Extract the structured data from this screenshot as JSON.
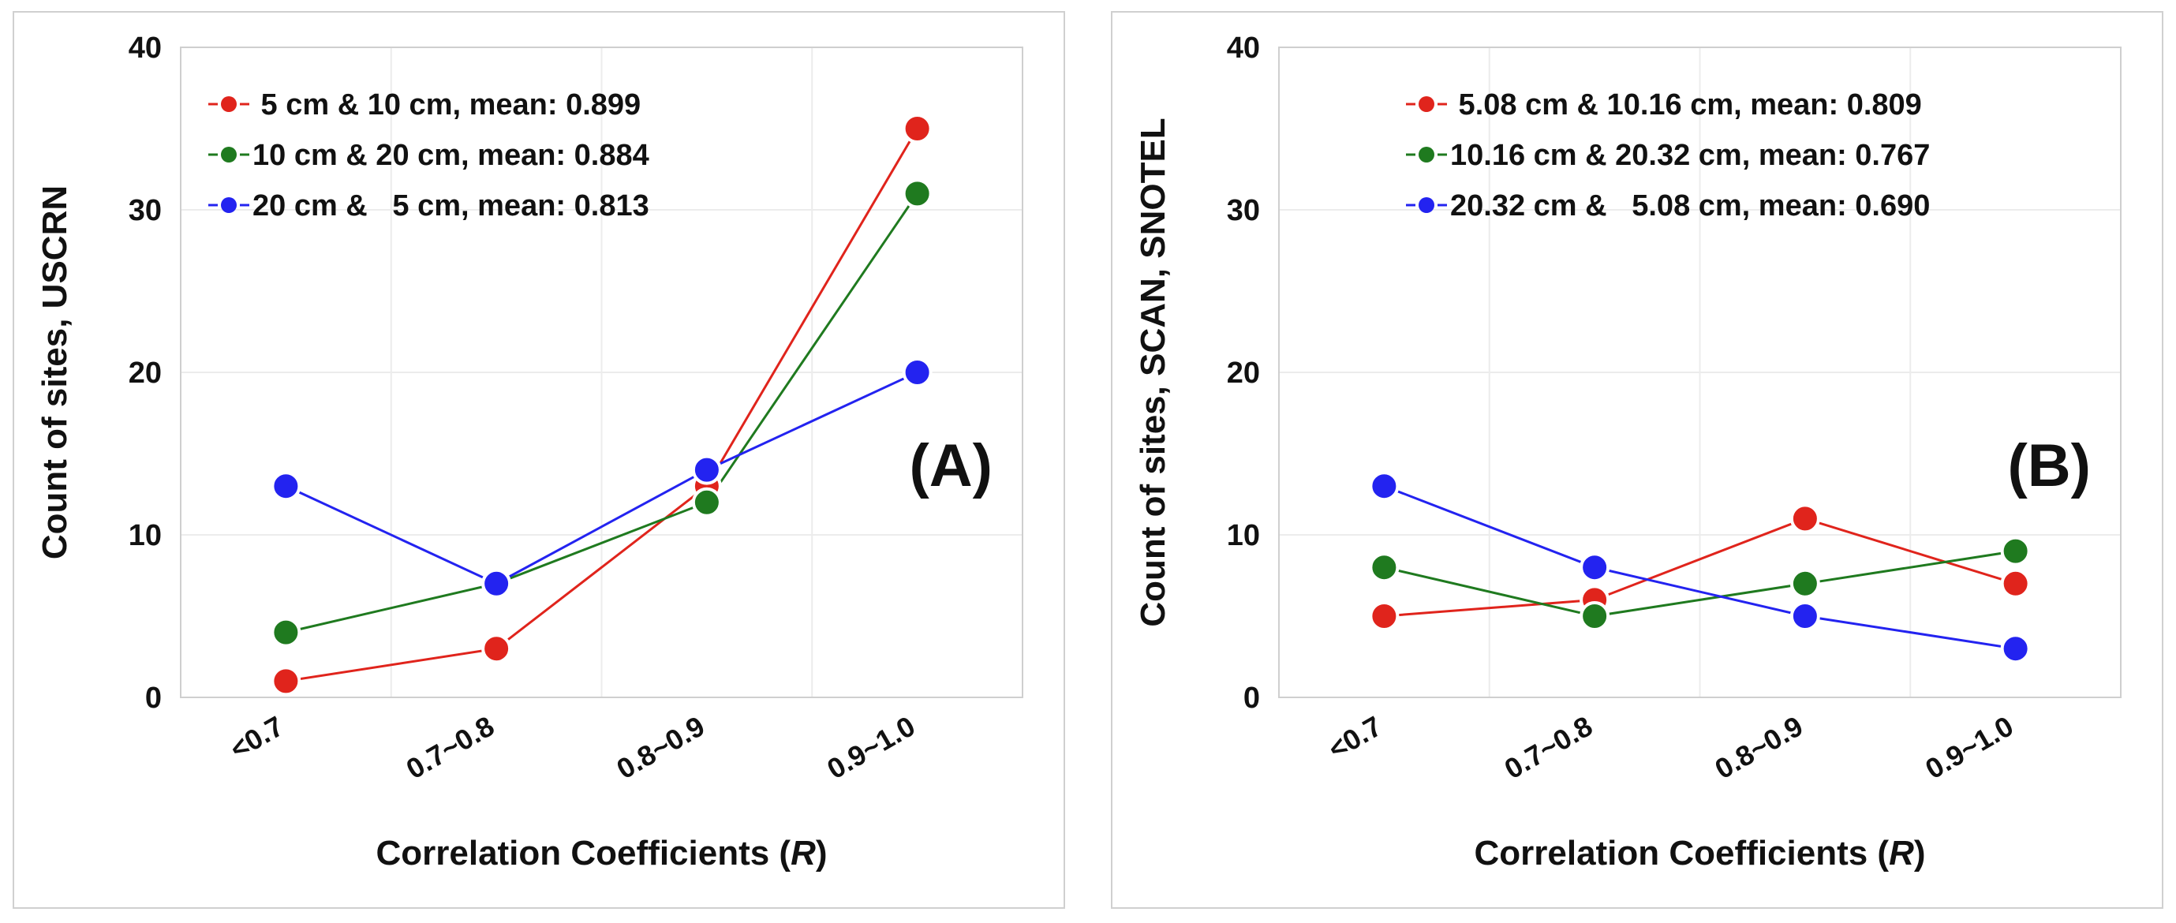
{
  "chart_data": [
    {
      "type": "line",
      "panel_label": "(A)",
      "categories": [
        "<0.7",
        "0.7~0.8",
        "0.8~0.9",
        "0.9~1.0"
      ],
      "xlabel": "Correlation Coefficients (",
      "xlabel_italic": "R",
      "xlabel_end": ")",
      "ylabel": "Count of sites, USCRN",
      "ylim": [
        0,
        40
      ],
      "yticks": [
        "0",
        "10",
        "20",
        "30",
        "40"
      ],
      "yticks_values": [
        0,
        10,
        20,
        30,
        40
      ],
      "legend_position": "top-left",
      "series": [
        {
          "name": " 5 cm & 10 cm, mean: 0.899",
          "color": "#e0241c",
          "values": [
            1,
            3,
            13,
            35
          ]
        },
        {
          "name": "10 cm & 20 cm, mean: 0.884",
          "color": "#1f7a1f",
          "values": [
            4,
            7,
            12,
            31
          ]
        },
        {
          "name": "20 cm &   5 cm, mean: 0.813",
          "color": "#2323f0",
          "values": [
            13,
            7,
            14,
            20
          ]
        }
      ]
    },
    {
      "type": "line",
      "panel_label": "(B)",
      "categories": [
        "<0.7",
        "0.7~0.8",
        "0.8~0.9",
        "0.9~1.0"
      ],
      "xlabel": "Correlation Coefficients (",
      "xlabel_italic": "R",
      "xlabel_end": ")",
      "ylabel": "Count of sites, SCAN, SNOTEL",
      "ylim": [
        0,
        40
      ],
      "yticks": [
        "0",
        "10",
        "20",
        "30",
        "40"
      ],
      "yticks_values": [
        0,
        10,
        20,
        30,
        40
      ],
      "legend_position": "top-right",
      "series": [
        {
          "name": " 5.08 cm & 10.16 cm, mean: 0.809",
          "color": "#e0241c",
          "values": [
            5,
            6,
            11,
            7
          ]
        },
        {
          "name": "10.16 cm & 20.32 cm, mean: 0.767",
          "color": "#1f7a1f",
          "values": [
            8,
            5,
            7,
            9
          ]
        },
        {
          "name": "20.32 cm &   5.08 cm, mean: 0.690",
          "color": "#2323f0",
          "values": [
            13,
            8,
            5,
            3
          ]
        }
      ]
    }
  ]
}
